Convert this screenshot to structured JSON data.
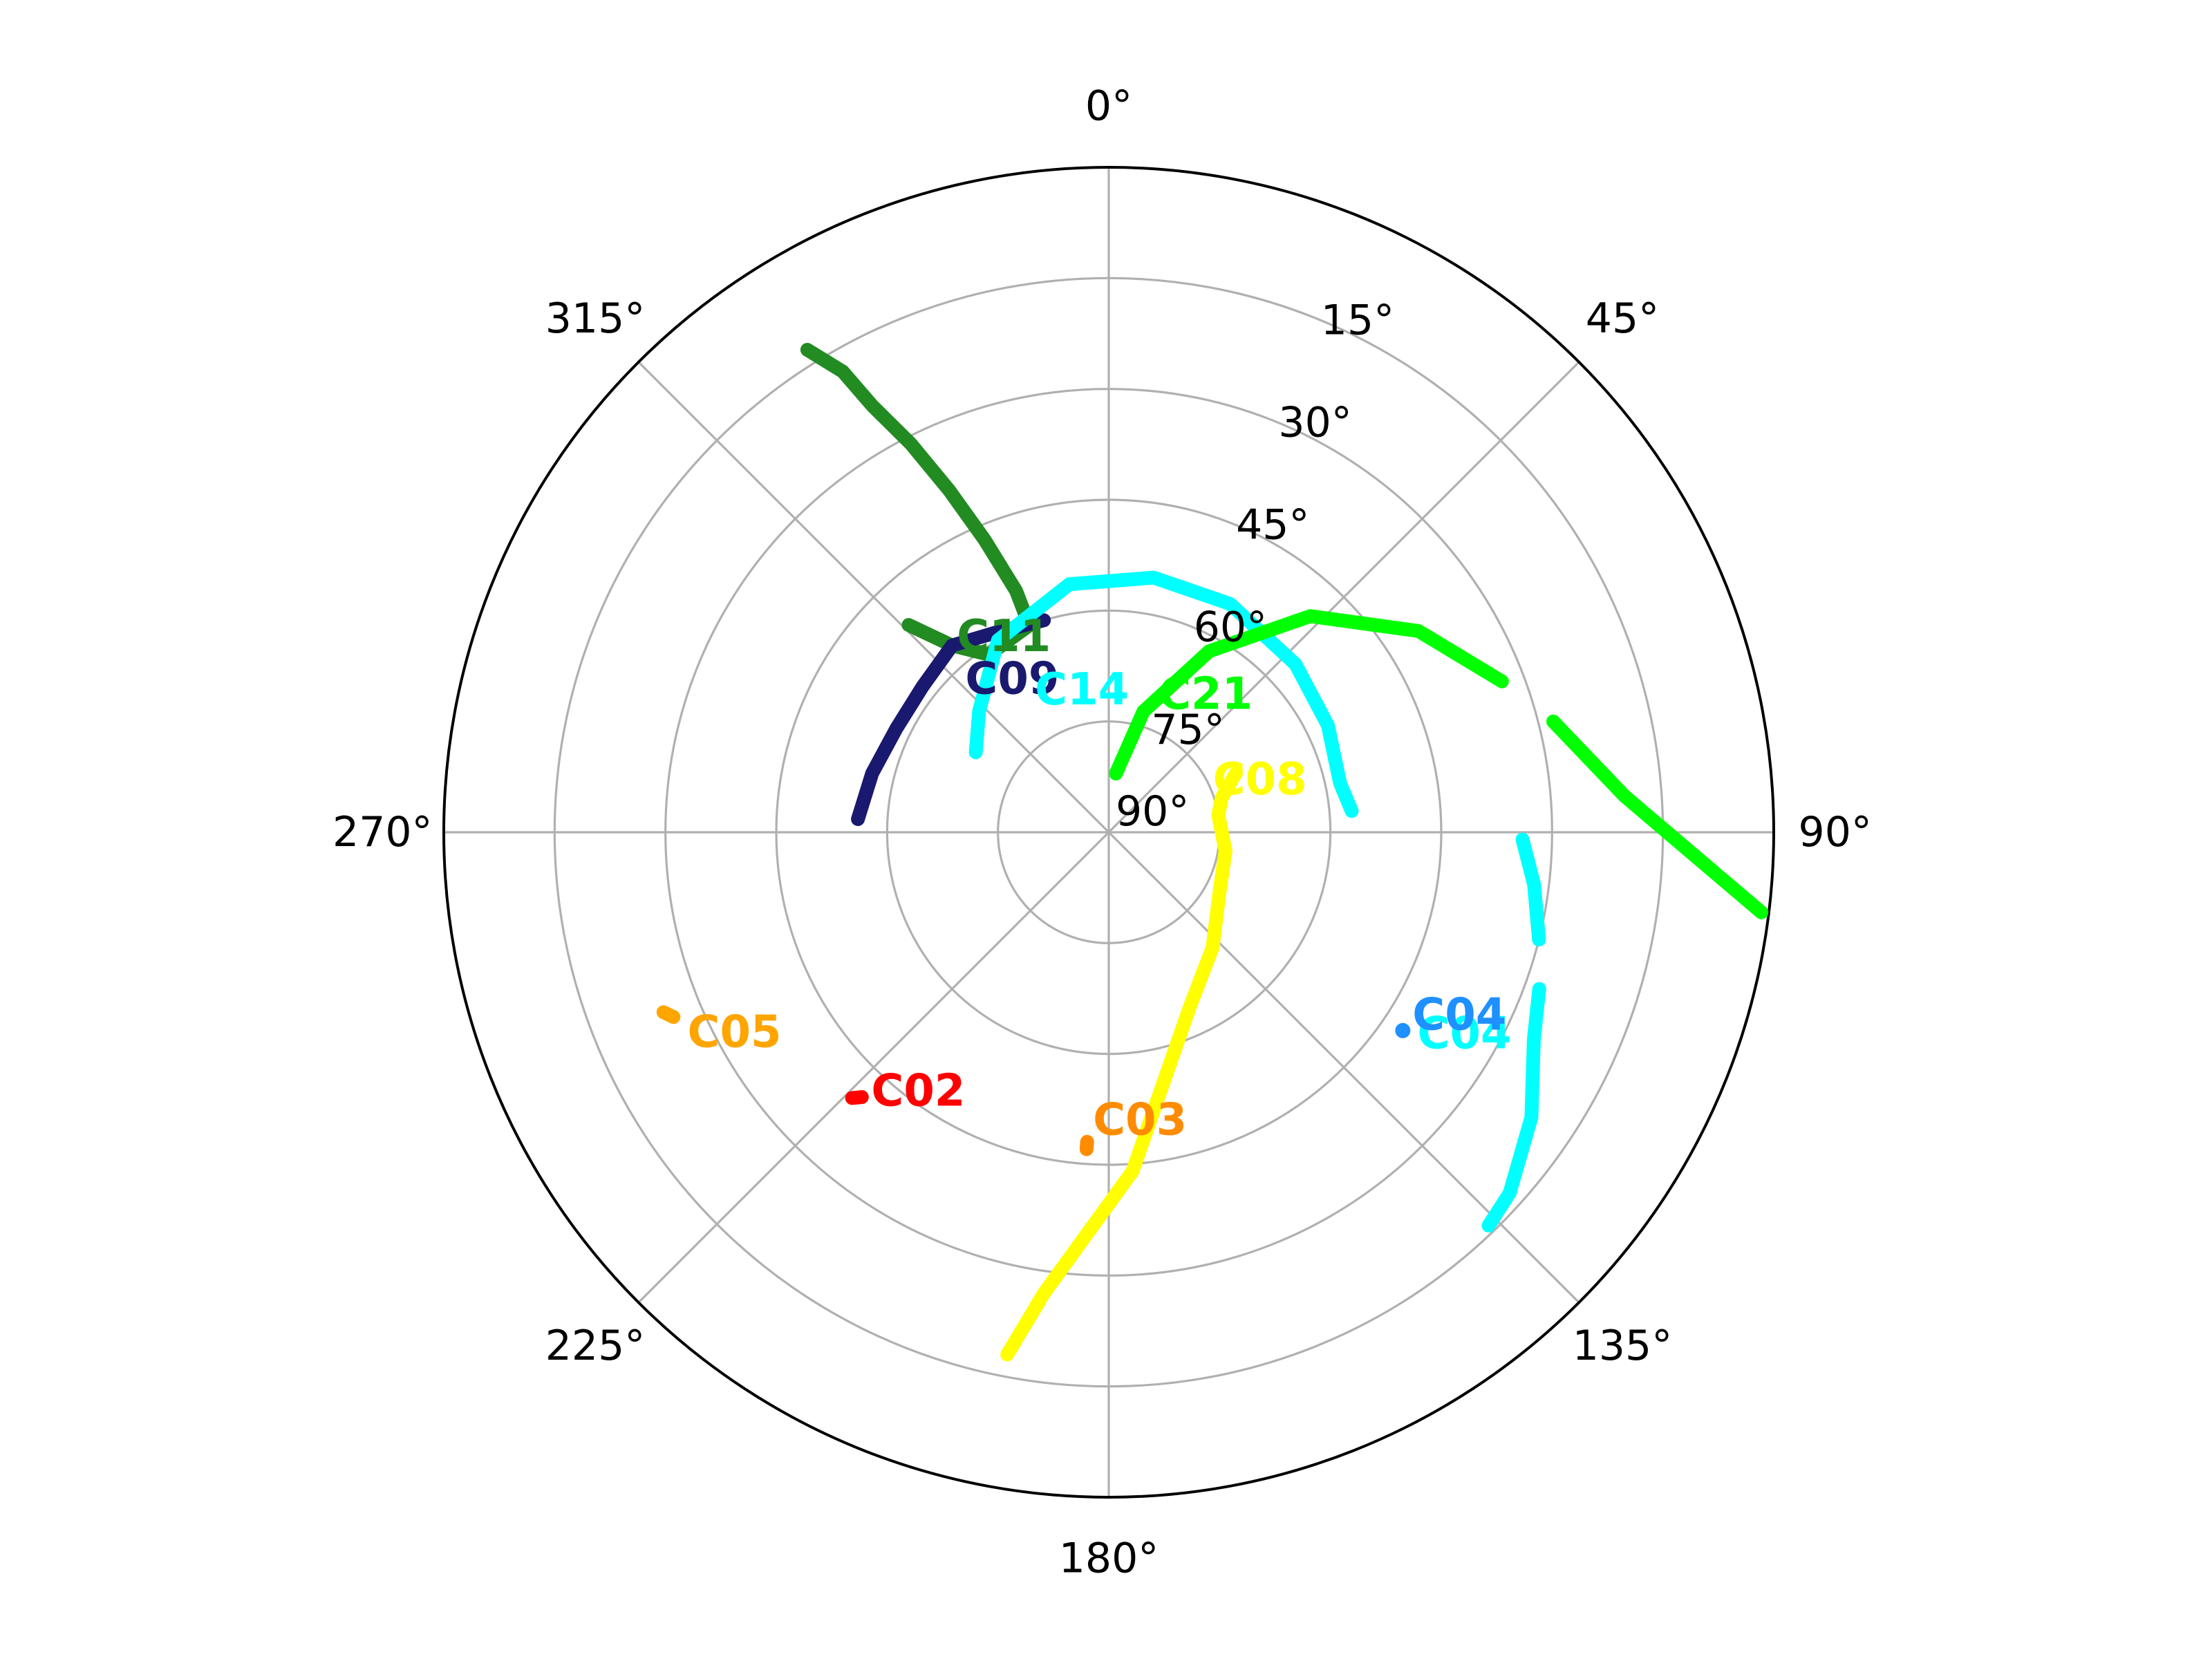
{
  "chart_data": {
    "type": "polar-skyplot",
    "title": "",
    "grid": true,
    "theta_zero": "top",
    "theta_direction": "clockwise",
    "r_range_elevation": [
      0,
      90
    ],
    "azimuth_ticks": [
      {
        "value": 0,
        "label": "0°"
      },
      {
        "value": 45,
        "label": "45°"
      },
      {
        "value": 90,
        "label": "90°"
      },
      {
        "value": 135,
        "label": "135°"
      },
      {
        "value": 180,
        "label": "180°"
      },
      {
        "value": 225,
        "label": "225°"
      },
      {
        "value": 270,
        "label": "270°"
      },
      {
        "value": 315,
        "label": "315°"
      }
    ],
    "elevation_ticks": [
      {
        "value": 15,
        "label": "15°"
      },
      {
        "value": 30,
        "label": "30°"
      },
      {
        "value": 45,
        "label": "45°"
      },
      {
        "value": 60,
        "label": "60°"
      },
      {
        "value": 75,
        "label": "75°"
      },
      {
        "value": 90,
        "label": "90°"
      }
    ],
    "series": [
      {
        "name": "C11",
        "color": "#228B22",
        "label_pos": [
          320,
          58
        ],
        "segments": [
          [
            [
              316,
              51
            ],
            [
              320,
              57
            ],
            [
              326,
              61
            ],
            [
              339,
              60
            ],
            [
              339,
              55
            ],
            [
              337,
              47
            ],
            [
              335,
              39
            ],
            [
              333,
              31
            ],
            [
              331,
              24
            ],
            [
              330,
              18
            ],
            [
              328,
              13
            ]
          ]
        ]
      },
      {
        "name": "C09",
        "color": "#191970",
        "label_pos": [
          314,
          63
        ],
        "segments": [
          [
            [
              343,
              60
            ],
            [
              331,
              59
            ],
            [
              320,
              57
            ],
            [
              308,
              58
            ],
            [
              296,
              58
            ],
            [
              284,
              57
            ],
            [
              273,
              56
            ]
          ]
        ]
      },
      {
        "name": "C14",
        "color": "#00FFFF",
        "label_pos": [
          330,
          70
        ],
        "segments": [
          [
            [
              301,
              69
            ],
            [
              313,
              66
            ],
            [
              330,
              60
            ],
            [
              351,
              56
            ],
            [
              10,
              55
            ],
            [
              28,
              55
            ],
            [
              48,
              56
            ],
            [
              64,
              57
            ],
            [
              78,
              58
            ],
            [
              85,
              57
            ]
          ]
        ]
      },
      {
        "name": "C21",
        "color": "#00FF00",
        "label_pos": [
          22,
          72
        ],
        "segments": [
          [
            [
              7,
              82
            ],
            [
              16,
              73
            ],
            [
              29,
              62
            ],
            [
              43,
              50
            ],
            [
              57,
              40
            ],
            [
              69,
              33
            ]
          ],
          [
            [
              76,
              28
            ],
            [
              86,
              20
            ],
            [
              97,
              1
            ]
          ]
        ]
      },
      {
        "name": "C08",
        "color": "#FFFF00",
        "label_pos": [
          70,
          75
        ],
        "segments": [
          [
            [
              65,
              71
            ],
            [
              73,
              74
            ],
            [
              81,
              75
            ],
            [
              99,
              74
            ],
            [
              118,
              73
            ],
            [
              138,
              69
            ],
            [
              155,
              64
            ],
            [
              168,
              55
            ],
            [
              176,
              44
            ],
            [
              188,
              27
            ],
            [
              191,
              18
            ]
          ]
        ]
      },
      {
        "name": "C04",
        "color": "#00FFFF",
        "label_pos": [
          125,
          39
        ],
        "segments": [
          [
            [
              91,
              34
            ],
            [
              97,
              32
            ],
            [
              104,
              30
            ]
          ],
          [
            [
              110,
              28
            ],
            [
              116,
              26
            ],
            [
              124,
              21
            ],
            [
              132,
              17
            ],
            [
              136,
              16
            ]
          ]
        ]
      },
      {
        "name": "C04",
        "color": "#1E90FF",
        "label_pos": [
          123,
          41
        ],
        "segments": [
          [
            [
              124,
              42
            ],
            [
              124,
              42
            ]
          ]
        ]
      },
      {
        "name": "C05",
        "color": "#FFA500",
        "label_pos": [
          243,
          26
        ],
        "segments": [
          [
            [
              248,
              25
            ],
            [
              247,
              26
            ]
          ]
        ]
      },
      {
        "name": "C02",
        "color": "#FF0000",
        "label_pos": [
          221,
          41
        ],
        "segments": [
          [
            [
              224,
              40
            ],
            [
              223,
              41
            ]
          ]
        ]
      },
      {
        "name": "C03",
        "color": "#FF8C00",
        "label_pos": [
          183,
          49
        ],
        "segments": [
          [
            [
              184,
              47
            ],
            [
              184,
              48
            ]
          ]
        ]
      }
    ]
  }
}
